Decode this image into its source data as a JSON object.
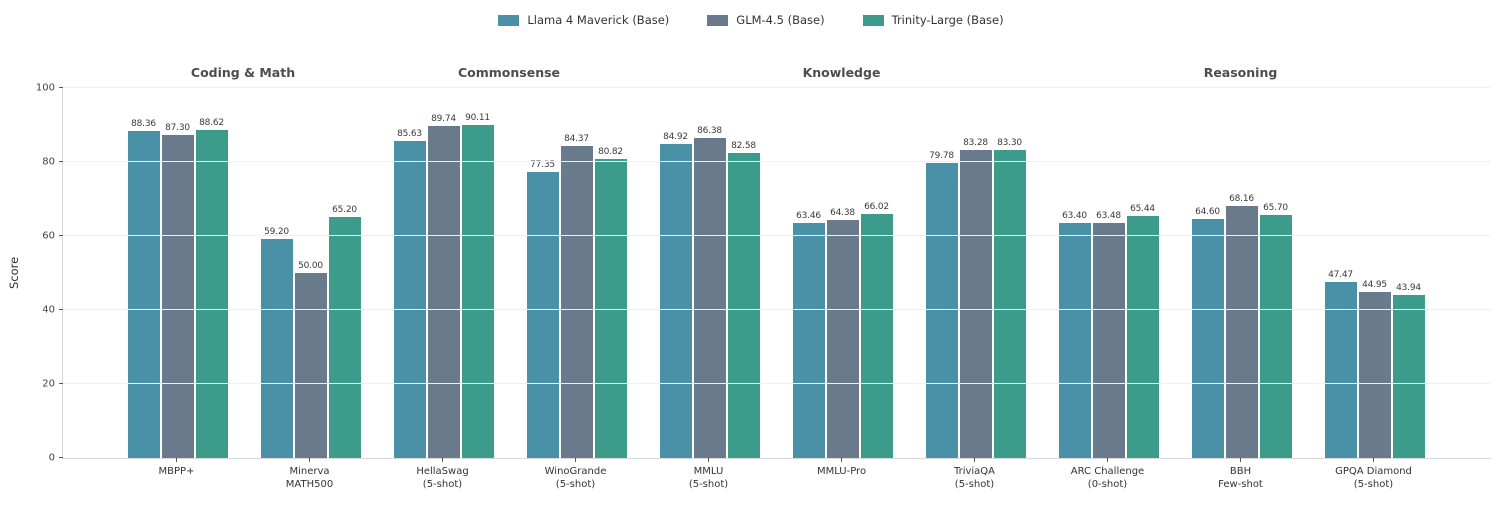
{
  "chart_data": {
    "type": "bar",
    "title": "",
    "xlabel": "",
    "ylabel": "Score",
    "ylim": [
      0,
      100
    ],
    "yticks": [
      0,
      20,
      40,
      60,
      80,
      100
    ],
    "grid": true,
    "legend_position": "top-center",
    "value_label_decimals": 2,
    "categories": [
      "MBPP+",
      "Minerva MATH500",
      "HellaSwag (5-shot)",
      "WinoGrande (5-shot)",
      "MMLU (5-shot)",
      "MMLU-Pro",
      "TriviaQA (5-shot)",
      "ARC Challenge (0-shot)",
      "BBH Few-shot",
      "GPQA Diamond (5-shot)"
    ],
    "category_tick_lines": [
      [
        "MBPP+"
      ],
      [
        "Minerva",
        "MATH500"
      ],
      [
        "HellaSwag",
        "(5-shot)"
      ],
      [
        "WinoGrande",
        "(5-shot)"
      ],
      [
        "MMLU",
        "(5-shot)"
      ],
      [
        "MMLU-Pro"
      ],
      [
        "TriviaQA",
        "(5-shot)"
      ],
      [
        "ARC Challenge",
        "(0-shot)"
      ],
      [
        "BBH",
        "Few-shot"
      ],
      [
        "GPQA Diamond",
        "(5-shot)"
      ]
    ],
    "group_headers": [
      {
        "label": "Coding & Math",
        "start": 0,
        "end": 1
      },
      {
        "label": "Commonsense",
        "start": 2,
        "end": 3
      },
      {
        "label": "Knowledge",
        "start": 4,
        "end": 6
      },
      {
        "label": "Reasoning",
        "start": 7,
        "end": 9
      }
    ],
    "series": [
      {
        "name": "Llama 4 Maverick (Base)",
        "color": "#4a90a6",
        "values": [
          88.36,
          59.2,
          85.63,
          77.35,
          84.92,
          63.46,
          79.78,
          63.4,
          64.6,
          47.47
        ]
      },
      {
        "name": "GLM-4.5 (Base)",
        "color": "#687a8b",
        "values": [
          87.3,
          50.0,
          89.74,
          84.37,
          86.38,
          64.38,
          83.28,
          63.48,
          68.16,
          44.95
        ]
      },
      {
        "name": "Trinity-Large (Base)",
        "color": "#3c9b8a",
        "values": [
          88.62,
          65.2,
          90.11,
          80.82,
          82.58,
          66.02,
          83.3,
          65.44,
          65.7,
          43.94
        ]
      }
    ],
    "colors": {
      "gridline": "#f0f0f0",
      "spine": "#d9d9d9",
      "tick": "#555555",
      "header_text": "#4d4d4d",
      "label_text": "#333333"
    }
  }
}
